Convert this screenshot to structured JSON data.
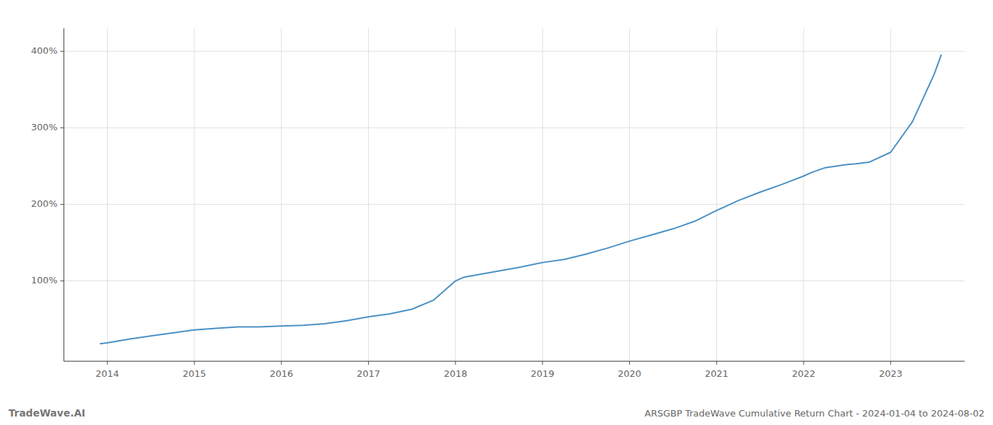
{
  "chart_data": {
    "type": "line",
    "title": "ARSGBP TradeWave Cumulative Return Chart - 2024-01-04 to 2024-08-02",
    "annotations": [
      "TradeWave.AI"
    ],
    "color": "#4a90c4",
    "grid": true,
    "x": [
      2013.92,
      2014.0,
      2014.25,
      2014.5,
      2014.75,
      2015.0,
      2015.25,
      2015.5,
      2015.75,
      2016.0,
      2016.25,
      2016.5,
      2016.75,
      2017.0,
      2017.25,
      2017.5,
      2017.75,
      2018.0,
      2018.1,
      2018.25,
      2018.5,
      2018.75,
      2019.0,
      2019.25,
      2019.5,
      2019.75,
      2020.0,
      2020.25,
      2020.5,
      2020.75,
      2021.0,
      2021.25,
      2021.5,
      2021.75,
      2022.0,
      2022.1,
      2022.25,
      2022.5,
      2022.6,
      2022.75,
      2023.0,
      2023.25,
      2023.5,
      2023.58
    ],
    "values": [
      18,
      19,
      24,
      28,
      32,
      36,
      38,
      40,
      40,
      41,
      42,
      44,
      48,
      53,
      57,
      63,
      75,
      100,
      105,
      108,
      113,
      118,
      124,
      128,
      135,
      143,
      152,
      160,
      168,
      178,
      192,
      205,
      216,
      226,
      237,
      242,
      248,
      252,
      253,
      255,
      268,
      308,
      370,
      395
    ],
    "xlim": [
      2013.5,
      2023.85
    ],
    "xticks": [
      2014,
      2015,
      2016,
      2017,
      2018,
      2019,
      2020,
      2021,
      2022,
      2023
    ],
    "ylim": [
      -5,
      430
    ],
    "yticks": [
      {
        "value": 100,
        "label": "100%"
      },
      {
        "value": 200,
        "label": "200%"
      },
      {
        "value": 300,
        "label": "300%"
      },
      {
        "value": 400,
        "label": "400%"
      }
    ]
  }
}
